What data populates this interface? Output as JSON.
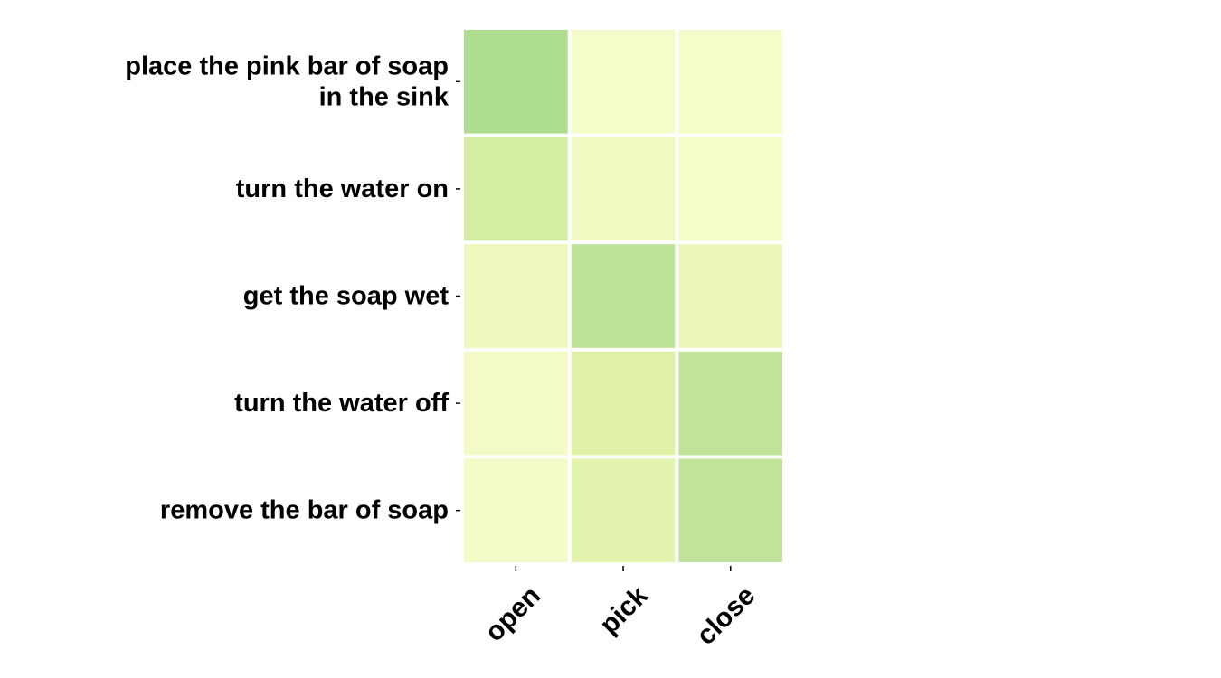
{
  "chart_data": {
    "type": "heatmap",
    "title": "",
    "xlabel": "",
    "ylabel": "",
    "x_categories": [
      "open",
      "pick",
      "close"
    ],
    "y_categories": [
      [
        "place the pink bar of soap",
        "in the sink"
      ],
      [
        "turn the water on"
      ],
      [
        "get the soap wet"
      ],
      [
        "turn the water off"
      ],
      [
        "remove the bar of soap"
      ]
    ],
    "values": [
      [
        0.85,
        0.02,
        0.03
      ],
      [
        0.45,
        0.1,
        0.03
      ],
      [
        0.15,
        0.72,
        0.18
      ],
      [
        0.06,
        0.35,
        0.7
      ],
      [
        0.05,
        0.28,
        0.7
      ]
    ],
    "value_range": [
      0,
      1
    ],
    "colormap": [
      "#f7fccc",
      "#dff2a8",
      "#c3e69b",
      "#9fd686"
    ],
    "grid": false,
    "legend": "none"
  }
}
